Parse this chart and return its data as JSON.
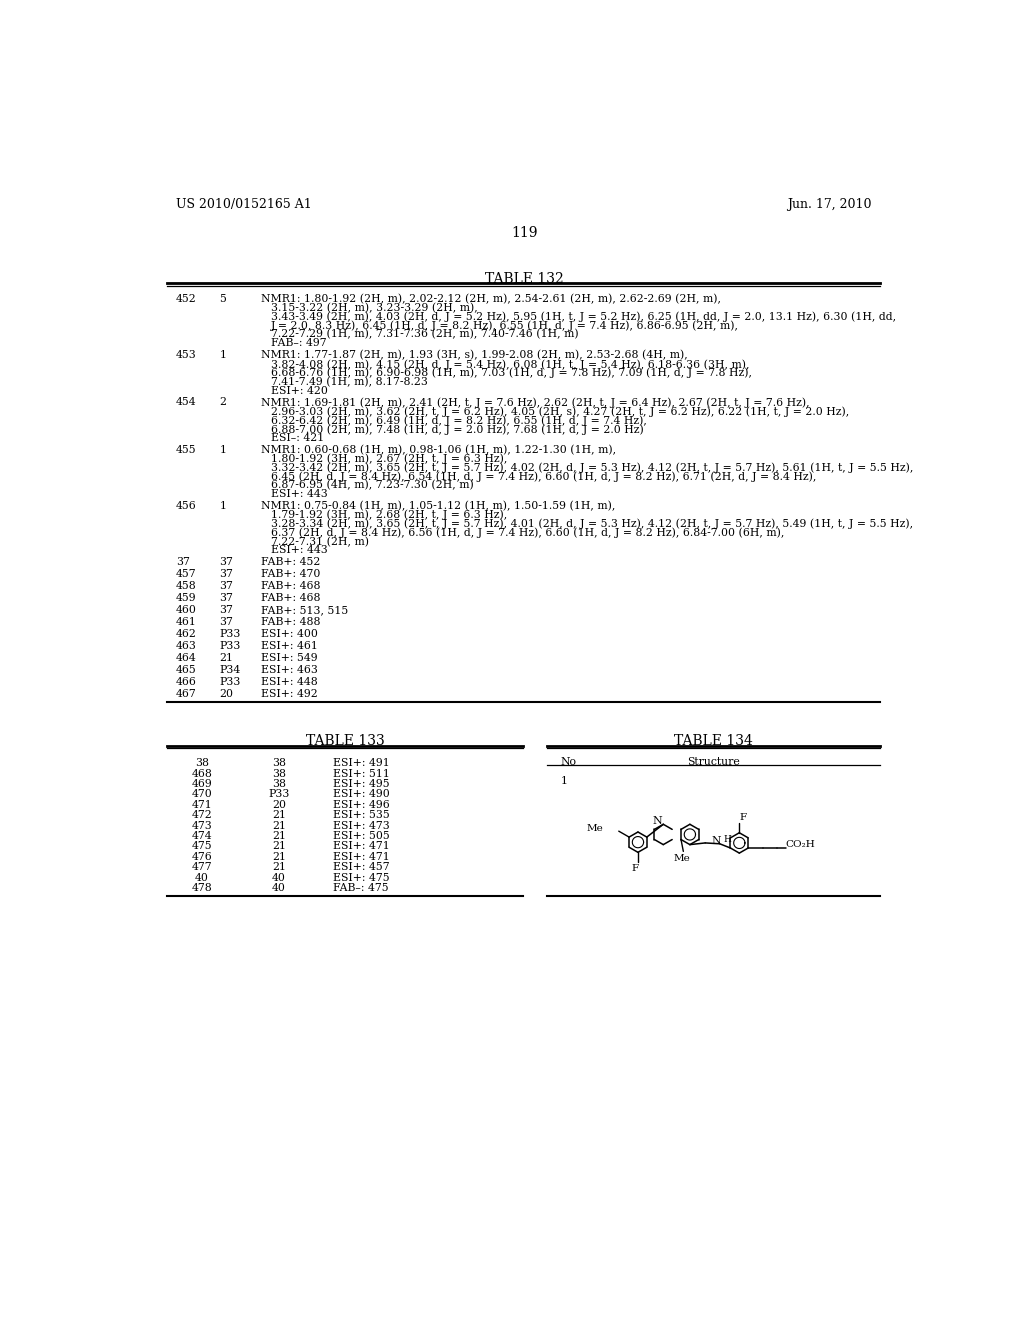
{
  "page_left_header": "US 2010/0152165 A1",
  "page_right_header": "Jun. 17, 2010",
  "page_number": "119",
  "background_color": "#ffffff",
  "text_color": "#000000",
  "table132_title": "TABLE 132",
  "table132_rows": [
    {
      "col1": "452",
      "col2": "5",
      "col3_lines": [
        "NMR1: 1.80-1.92 (2H, m), 2.02-2.12 (2H, m), 2.54-2.61 (2H, m), 2.62-2.69 (2H, m),",
        "3.15-3.22 (2H, m), 3.23-3.29 (2H, m),",
        "3.43-3.49 (2H, m), 4.03 (2H, d, J = 5.2 Hz), 5.95 (1H, t, J = 5.2 Hz), 6.25 (1H, dd, J = 2.0, 13.1 Hz), 6.30 (1H, dd,",
        "J = 2.0, 8.3 Hz), 6.45 (1H, d, J = 8.2 Hz), 6.55 (1H, d, J = 7.4 Hz), 6.86-6.95 (2H, m),",
        "7.22-7.29 (1H, m), 7.31-7.36 (2H, m), 7.40-7.46 (1H, m)",
        "FAB–: 497"
      ]
    },
    {
      "col1": "453",
      "col2": "1",
      "col3_lines": [
        "NMR1: 1.77-1.87 (2H, m), 1.93 (3H, s), 1.99-2.08 (2H, m), 2.53-2.68 (4H, m),",
        "3.82-4.08 (2H, m), 4.15 (2H, d, J = 5.4 Hz), 6.08 (1H, t, J = 5.4 Hz), 6.18-6.36 (3H, m),",
        "6.68-6.76 (1H, m), 6.90-6.98 (1H, m), 7.03 (1H, d, J = 7.8 Hz), 7.09 (1H, d, J = 7.8 Hz),",
        "7.41-7.49 (1H, m), 8.17-8.23",
        "ESI+: 420"
      ]
    },
    {
      "col1": "454",
      "col2": "2",
      "col3_lines": [
        "NMR1: 1.69-1.81 (2H, m), 2.41 (2H, t, J = 7.6 Hz), 2.62 (2H, t, J = 6.4 Hz), 2.67 (2H, t, J = 7.6 Hz),",
        "2.96-3.03 (2H, m), 3.62 (2H, t, J = 6.2 Hz), 4.05 (2H, s), 4.27 (2H, t, J = 6.2 Hz), 6.22 (1H, t, J = 2.0 Hz),",
        "6.32-6.42 (2H, m), 6.49 (1H, d, J = 8.2 Hz), 6.55 (1H, d, J = 7.4 Hz),",
        "6.88-7.00 (2H, m), 7.48 (1H, d, J = 2.0 Hz), 7.68 (1H, d, J = 2.0 Hz)",
        "ESI–: 421"
      ]
    },
    {
      "col1": "455",
      "col2": "1",
      "col3_lines": [
        "NMR1: 0.60-0.68 (1H, m), 0.98-1.06 (1H, m), 1.22-1.30 (1H, m),",
        "1.80-1.92 (3H, m), 2.67 (2H, t, J = 6.3 Hz),",
        "3.32-3.42 (2H, m), 3.65 (2H, t, J = 5.7 Hz), 4.02 (2H, d, J = 5.3 Hz), 4.12 (2H, t, J = 5.7 Hz), 5.61 (1H, t, J = 5.5 Hz),",
        "6.45 (2H, d, J = 8.4 Hz), 6.54 (1H, d, J = 7.4 Hz), 6.60 (1H, d, J = 8.2 Hz), 6.71 (2H, d, J = 8.4 Hz),",
        "6.87-6.95 (4H, m), 7.23-7.30 (2H, m)",
        "ESI+: 443"
      ]
    },
    {
      "col1": "456",
      "col2": "1",
      "col3_lines": [
        "NMR1: 0.75-0.84 (1H, m), 1.05-1.12 (1H, m), 1.50-1.59 (1H, m),",
        "1.79-1.92 (3H, m), 2.68 (2H, t, J = 6.3 Hz),",
        "3.28-3.34 (2H, m), 3.65 (2H, t, J = 5.7 Hz), 4.01 (2H, d, J = 5.3 Hz), 4.12 (2H, t, J = 5.7 Hz), 5.49 (1H, t, J = 5.5 Hz),",
        "6.37 (2H, d, J = 8.4 Hz), 6.56 (1H, d, J = 7.4 Hz), 6.60 (1H, d, J = 8.2 Hz), 6.84-7.00 (6H, m),",
        "7.22-7.31 (2H, m)",
        "ESI+: 443"
      ]
    },
    {
      "col1": "37",
      "col2": "37",
      "col3_lines": [
        "FAB+: 452"
      ]
    },
    {
      "col1": "457",
      "col2": "37",
      "col3_lines": [
        "FAB+: 470"
      ]
    },
    {
      "col1": "458",
      "col2": "37",
      "col3_lines": [
        "FAB+: 468"
      ]
    },
    {
      "col1": "459",
      "col2": "37",
      "col3_lines": [
        "FAB+: 468"
      ]
    },
    {
      "col1": "460",
      "col2": "37",
      "col3_lines": [
        "FAB+: 513, 515"
      ]
    },
    {
      "col1": "461",
      "col2": "37",
      "col3_lines": [
        "FAB+: 488"
      ]
    },
    {
      "col1": "462",
      "col2": "P33",
      "col3_lines": [
        "ESI+: 400"
      ]
    },
    {
      "col1": "463",
      "col2": "P33",
      "col3_lines": [
        "ESI+: 461"
      ]
    },
    {
      "col1": "464",
      "col2": "21",
      "col3_lines": [
        "ESI+: 549"
      ]
    },
    {
      "col1": "465",
      "col2": "P34",
      "col3_lines": [
        "ESI+: 463"
      ]
    },
    {
      "col1": "466",
      "col2": "P33",
      "col3_lines": [
        "ESI+: 448"
      ]
    },
    {
      "col1": "467",
      "col2": "20",
      "col3_lines": [
        "ESI+: 492"
      ]
    }
  ],
  "table133_title": "TABLE 133",
  "table133_rows": [
    {
      "col1": "38",
      "col2": "38",
      "col3": "ESI+: 491"
    },
    {
      "col1": "468",
      "col2": "38",
      "col3": "ESI+: 511"
    },
    {
      "col1": "469",
      "col2": "38",
      "col3": "ESI+: 495"
    },
    {
      "col1": "470",
      "col2": "P33",
      "col3": "ESI+: 490"
    },
    {
      "col1": "471",
      "col2": "20",
      "col3": "ESI+: 496"
    },
    {
      "col1": "472",
      "col2": "21",
      "col3": "ESI+: 535"
    },
    {
      "col1": "473",
      "col2": "21",
      "col3": "ESI+: 473"
    },
    {
      "col1": "474",
      "col2": "21",
      "col3": "ESI+: 505"
    },
    {
      "col1": "475",
      "col2": "21",
      "col3": "ESI+: 471"
    },
    {
      "col1": "476",
      "col2": "21",
      "col3": "ESI+: 471"
    },
    {
      "col1": "477",
      "col2": "21",
      "col3": "ESI+: 457"
    },
    {
      "col1": "40",
      "col2": "40",
      "col3": "ESI+: 475"
    },
    {
      "col1": "478",
      "col2": "40",
      "col3": "FAB–: 475"
    }
  ],
  "table134_title": "TABLE 134",
  "table134_no_header": "No",
  "table134_struct_header": "Structure",
  "table134_row_no": "1"
}
